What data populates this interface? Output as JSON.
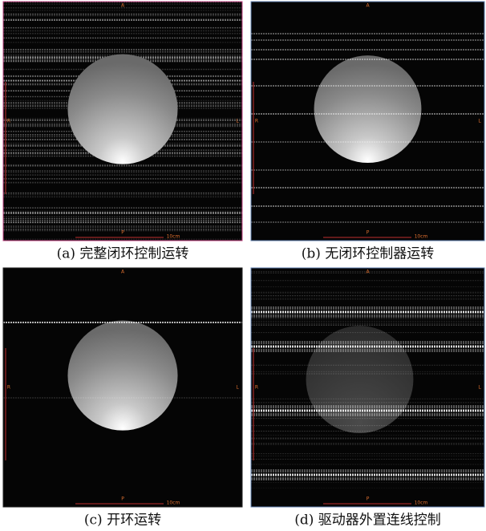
{
  "panels": [
    {
      "caption": "(a) 完整闭环控制运转",
      "markers": {
        "top": "A",
        "left": "R",
        "right": "L",
        "bottom": "P",
        "scale": "10cm"
      }
    },
    {
      "caption": "(b) 无闭环控制器运转",
      "markers": {
        "top": "A",
        "left": "R",
        "right": "L",
        "bottom": "P",
        "scale": "10cm"
      }
    },
    {
      "caption": "(c) 开环运转",
      "markers": {
        "top": "A",
        "left": "R",
        "right": "L",
        "bottom": "P",
        "scale": "10cm"
      }
    },
    {
      "caption": "(d) 驱动器外置连线控制",
      "markers": {
        "top": "A",
        "left": "R",
        "right": "L",
        "bottom": "P",
        "scale": "10cm"
      }
    }
  ]
}
